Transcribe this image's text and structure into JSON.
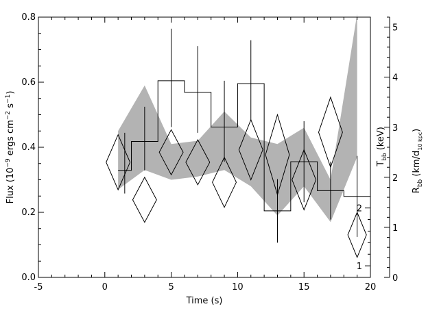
{
  "chart_data": {
    "type": "line",
    "xlabel": "Time (s)",
    "ylabel_left": {
      "base": "Flux (10",
      "sup1": "−9",
      "mid": " ergs cm",
      "sup2": "−2",
      "mid2": " s",
      "sup3": "−1",
      "end": ")"
    },
    "ylabel_right_inner": {
      "base": "T",
      "sub": "bb",
      "end": " (keV)"
    },
    "ylabel_right_outer": {
      "base": "R",
      "sub": "bb",
      "mid": " (km/d",
      "sub2": "10 kpc",
      "end": ")"
    },
    "xlim": [
      -5,
      20
    ],
    "ylim_left": [
      0,
      0.8
    ],
    "ylim_right_outer": [
      0,
      5.2
    ],
    "ylim_right_inner": [
      0.8,
      5.3
    ],
    "x_ticks": [
      -5,
      0,
      5,
      10,
      15,
      20
    ],
    "y_left_ticks": [
      0.0,
      0.2,
      0.4,
      0.6,
      0.8
    ],
    "y_left_tick_labels": [
      "0.0",
      "0.2",
      "0.4",
      "0.6",
      "0.8"
    ],
    "y_right_outer_ticks": [
      0,
      1,
      2,
      3,
      4,
      5
    ],
    "y_right_inner_ticks": [
      1,
      2
    ],
    "grid": false,
    "series": [
      {
        "kind": "flux_band",
        "x": [
          1,
          3,
          5,
          7,
          9,
          11,
          13,
          15,
          17,
          19
        ],
        "lower": [
          0.27,
          0.33,
          0.3,
          0.31,
          0.33,
          0.28,
          0.19,
          0.28,
          0.17,
          0.37
        ],
        "upper": [
          0.45,
          0.59,
          0.41,
          0.42,
          0.51,
          0.43,
          0.41,
          0.46,
          0.3,
          0.81
        ]
      },
      {
        "kind": "temperature_histogram",
        "units": "keV",
        "bins": [
          {
            "x0": 1,
            "x1": 2,
            "y": 2.65,
            "err_lo": 2.25,
            "err_hi": 3.3
          },
          {
            "x0": 2,
            "x1": 4,
            "y": 3.15,
            "err_lo": 2.65,
            "err_hi": 3.75
          },
          {
            "x0": 4,
            "x1": 6,
            "y": 4.2,
            "err_lo": 3.4,
            "err_hi": 5.1
          },
          {
            "x0": 6,
            "x1": 8,
            "y": 4.0,
            "err_lo": 3.3,
            "err_hi": 4.8
          },
          {
            "x0": 8,
            "x1": 10,
            "y": 3.4,
            "err_lo": 2.8,
            "err_hi": 4.2
          },
          {
            "x0": 10,
            "x1": 12,
            "y": 4.15,
            "err_lo": 3.5,
            "err_hi": 4.9
          },
          {
            "x0": 12,
            "x1": 14,
            "y": 1.95,
            "err_lo": 1.4,
            "err_hi": 2.5
          },
          {
            "x0": 14,
            "x1": 16,
            "y": 2.8,
            "err_lo": 2.1,
            "err_hi": 3.5
          },
          {
            "x0": 16,
            "x1": 18,
            "y": 2.3,
            "err_lo": 1.8,
            "err_hi": 2.8
          },
          {
            "x0": 18,
            "x1": 20,
            "y": 2.2,
            "err_lo": 1.5,
            "err_hi": 2.9
          }
        ]
      },
      {
        "kind": "radius_diamonds",
        "x": [
          1,
          3,
          5,
          7,
          9,
          11,
          13,
          15,
          17,
          19
        ],
        "y": [
          2.3,
          1.55,
          2.5,
          2.3,
          1.9,
          2.55,
          2.45,
          1.95,
          2.9,
          0.85
        ],
        "err": [
          0.55,
          0.45,
          0.45,
          0.45,
          0.5,
          0.6,
          0.8,
          0.6,
          0.7,
          0.45
        ],
        "half_width_s": [
          0.9,
          0.9,
          0.9,
          0.9,
          0.9,
          0.9,
          0.9,
          0.9,
          0.9,
          0.7
        ]
      }
    ]
  }
}
